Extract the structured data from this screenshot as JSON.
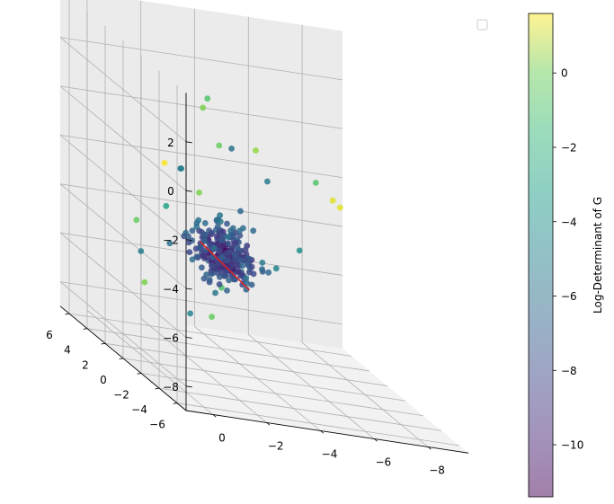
{
  "chart_data": {
    "type": "scatter",
    "title": "",
    "projection": "3d",
    "view": {
      "azimuth_desc": "x axis reversed (positive left), y axis toward viewer",
      "elevation_desc": "slightly above"
    },
    "axes": {
      "x": {
        "label": "",
        "ticks": [
          0,
          -2,
          -4,
          -6,
          -8
        ],
        "tick_labels": [
          "0",
          "−2",
          "−4",
          "−6",
          "−8"
        ],
        "range": [
          1,
          -9.5
        ]
      },
      "y": {
        "label": "",
        "ticks": [
          -6,
          -4,
          -2,
          0,
          2,
          4,
          6
        ],
        "tick_labels": [
          "−6",
          "−4",
          "−2",
          "0",
          "2",
          "4",
          "6"
        ],
        "range": [
          -7,
          7
        ]
      },
      "z": {
        "label": "",
        "ticks": [
          2,
          0,
          -2,
          -4,
          -6,
          -8
        ],
        "tick_labels": [
          "2",
          "0",
          "−2",
          "−4",
          "−6",
          "−8"
        ],
        "range": [
          -9,
          4
        ]
      }
    },
    "grid": true,
    "legend": {
      "placement": "top-right",
      "entries": []
    },
    "colorbar": {
      "label": "Log-Determinant of G",
      "colormap": "viridis",
      "alpha": 0.5,
      "range": [
        -11.4,
        1.6
      ],
      "ticks": [
        0,
        -2,
        -4,
        -6,
        -8,
        -10
      ],
      "tick_labels": [
        "0",
        "−2",
        "−4",
        "−6",
        "−8",
        "−10"
      ]
    },
    "line": {
      "color": "#d62728",
      "points": [
        [
          -2.2,
          1.0,
          -4.0
        ],
        [
          -4.2,
          1.5,
          -5.8
        ]
      ]
    },
    "point_cloud": {
      "count": 300,
      "center": [
        -3.2,
        1.5,
        -4.5
      ],
      "spread": [
        1.4,
        1.6,
        1.6
      ],
      "color_value_range": [
        -11.4,
        1.6
      ]
    },
    "series": [
      {
        "values": [
          [
            -1.8,
            -1.0,
            2.4,
            -2.0
          ],
          [
            -2.3,
            1.0,
            1.5,
            -1.0
          ],
          [
            -1.9,
            -2.0,
            0.8,
            -1.5
          ],
          [
            -0.2,
            -1.0,
            -0.5,
            1.5
          ],
          [
            -6.4,
            -2.0,
            -1.0,
            1.0
          ],
          [
            -7.8,
            3.0,
            -2.0,
            1.0
          ],
          [
            -6.9,
            4.0,
            -4.5,
            -5.0
          ],
          [
            -0.5,
            3.0,
            -4.0,
            -1.5
          ],
          [
            -3.5,
            5.0,
            -3.0,
            -1.0
          ],
          [
            -4.0,
            4.0,
            -6.5,
            -2.0
          ],
          [
            -1.0,
            4.0,
            -5.5,
            -6.0
          ],
          [
            -6.2,
            4.5,
            -5.5,
            -5.5
          ],
          [
            -0.8,
            3.0,
            -6.5,
            -1.0
          ],
          [
            -2.5,
            3.0,
            -7.5,
            -5.5
          ],
          [
            -3.3,
            3.0,
            -7.5,
            -1.5
          ],
          [
            -2.7,
            -1.0,
            0.5,
            -6.5
          ],
          [
            -3.7,
            1.0,
            -2.5,
            -7.0
          ],
          [
            -4.1,
            0.5,
            0.2,
            -0.5
          ],
          [
            -6.0,
            -0.5,
            -0.5,
            -2.0
          ],
          [
            -0.6,
            0.0,
            -2.5,
            -4.0
          ],
          [
            -1.3,
            0.5,
            -1.0,
            -6.0
          ],
          [
            -2.0,
            2.5,
            -1.5,
            -5.0
          ],
          [
            -1.4,
            2.0,
            -4.5,
            -6.5
          ],
          [
            -5.2,
            2.5,
            -1.5,
            -6.0
          ]
        ]
      }
    ]
  }
}
